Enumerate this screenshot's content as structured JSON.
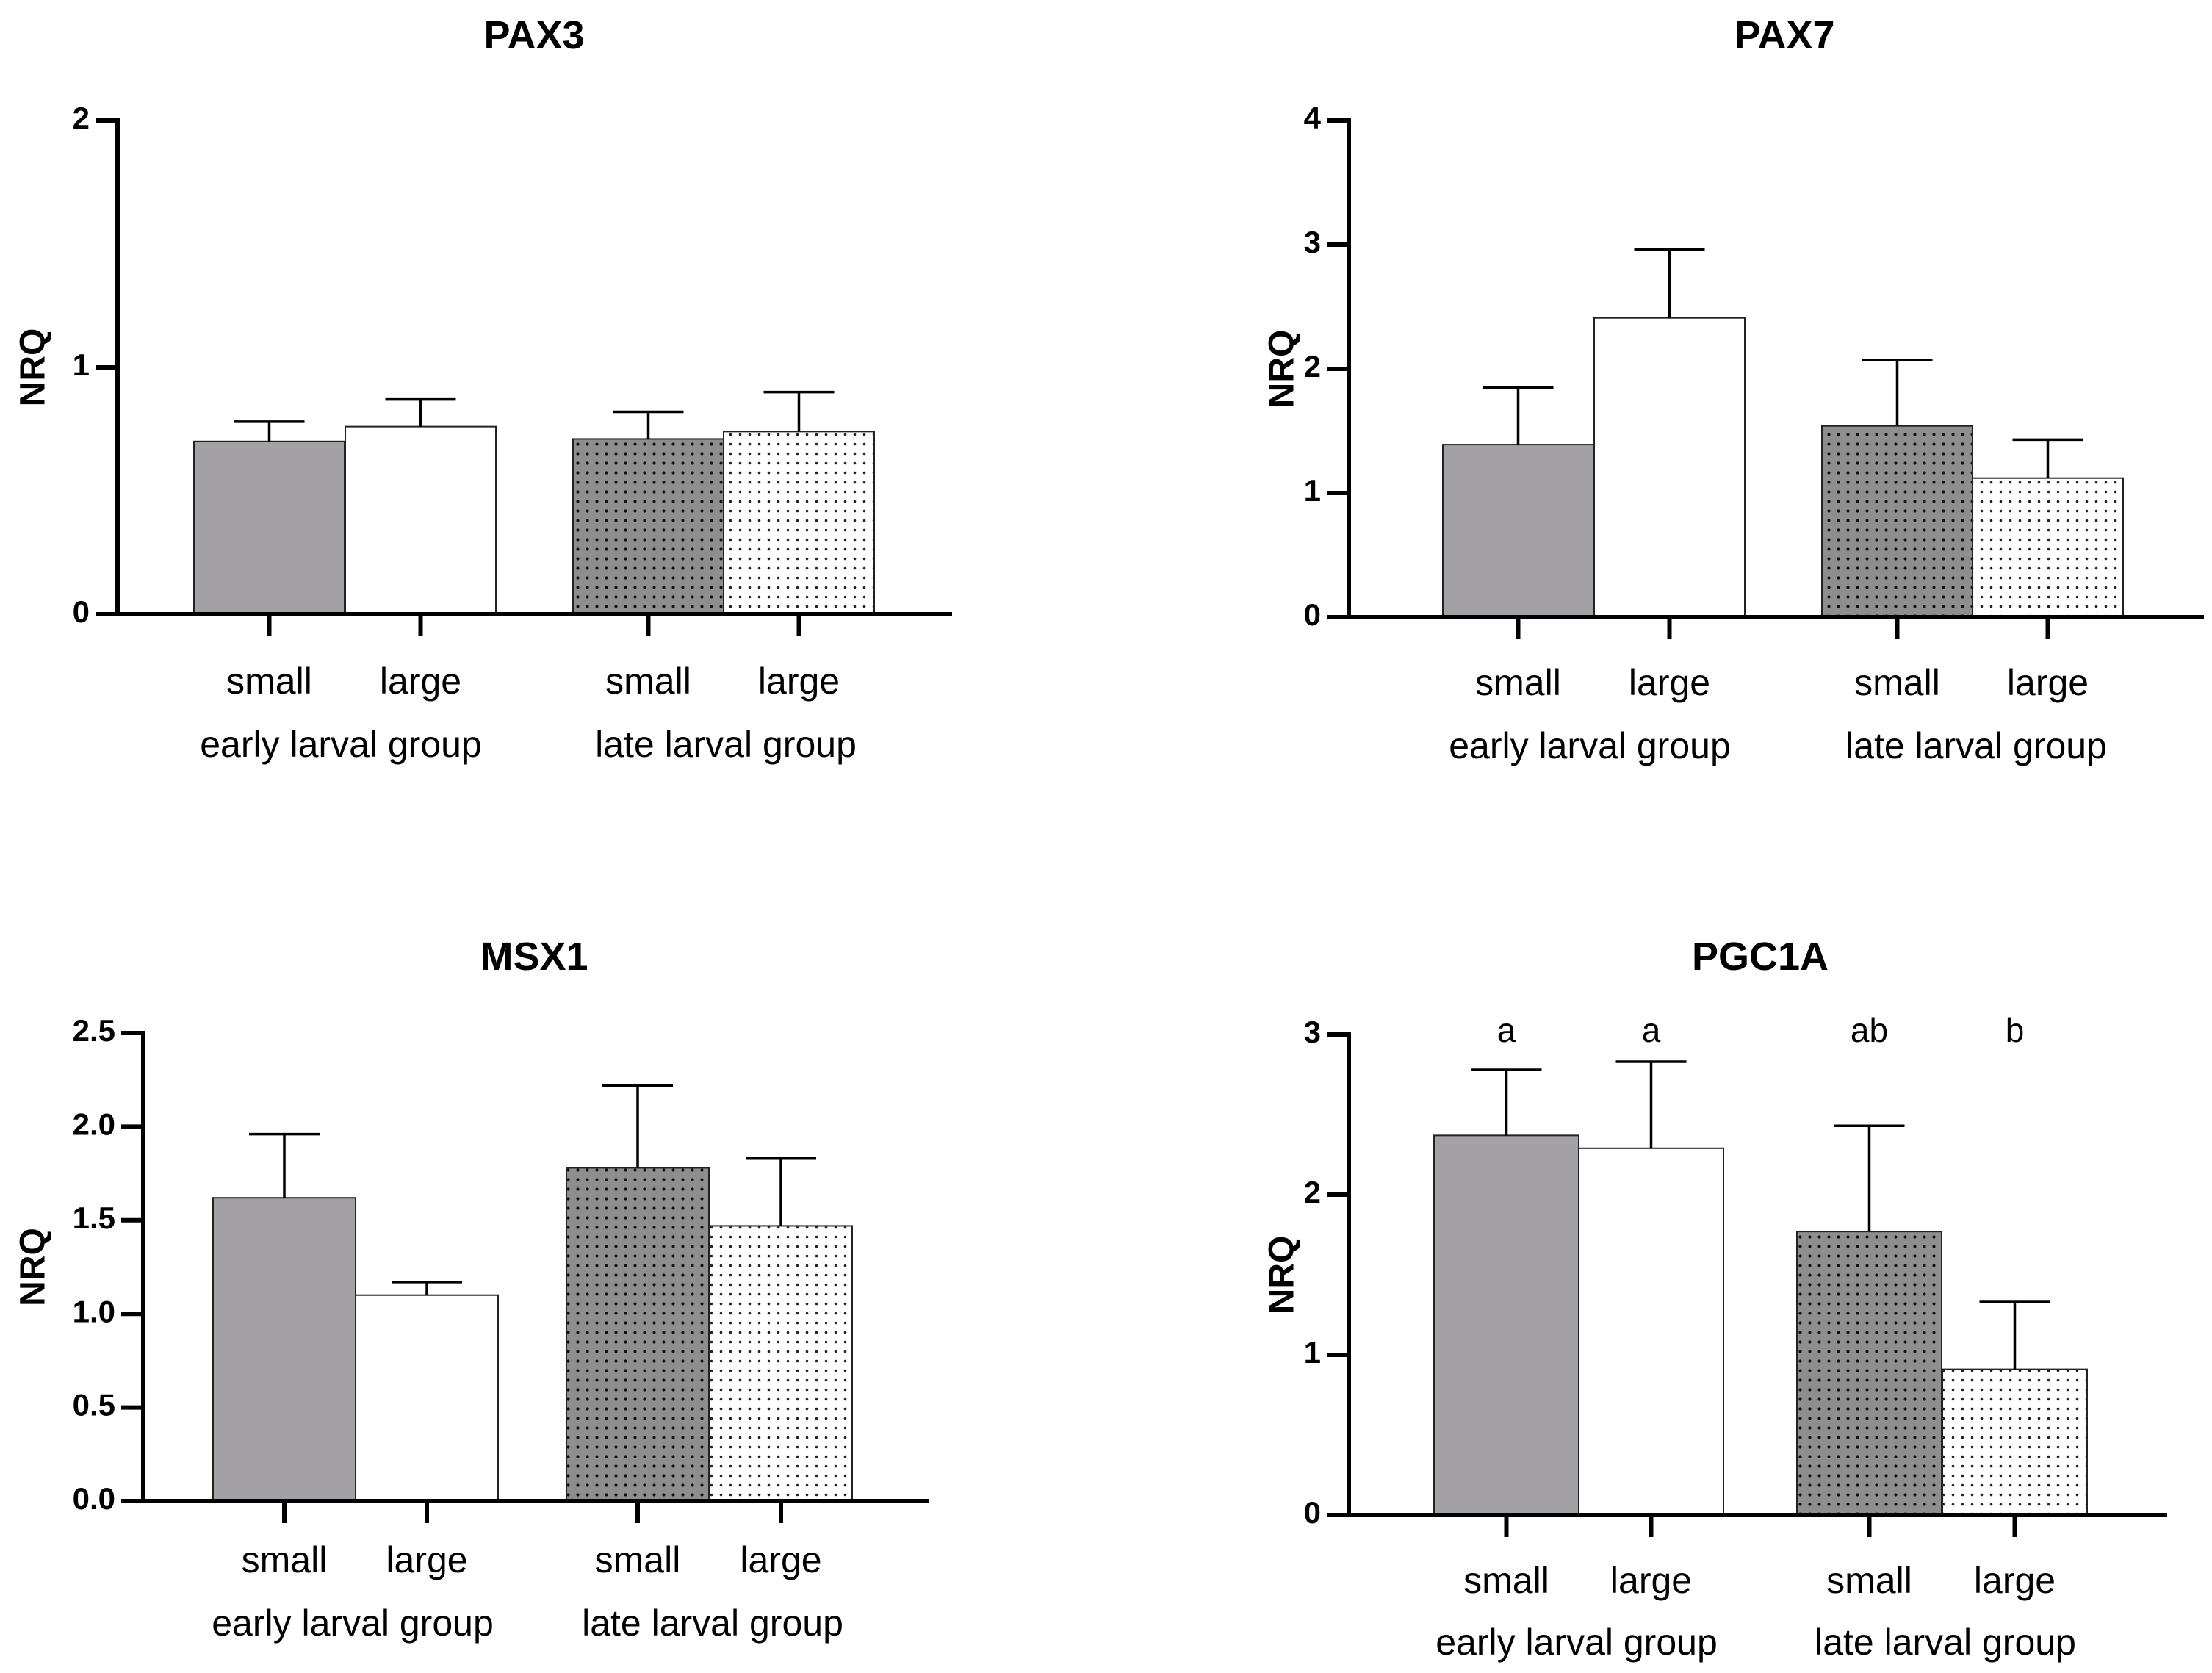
{
  "chart_data": [
    {
      "type": "bar",
      "title": "PAX3",
      "ylabel": "NRQ",
      "xlabel": "",
      "ylim": [
        0,
        2
      ],
      "yticks": [
        "0",
        "1",
        "2"
      ],
      "categories": [
        "small",
        "large",
        "small",
        "large"
      ],
      "groups": [
        "early larval group",
        "late larval group"
      ],
      "values": [
        0.7,
        0.76,
        0.71,
        0.74
      ],
      "errors": [
        0.08,
        0.11,
        0.11,
        0.16
      ],
      "fills": [
        "gray",
        "white",
        "dark-dots",
        "light-dots"
      ],
      "significance": []
    },
    {
      "type": "bar",
      "title": "PAX7",
      "ylabel": "NRQ",
      "xlabel": "",
      "ylim": [
        0,
        4
      ],
      "yticks": [
        "0",
        "1",
        "2",
        "3",
        "4"
      ],
      "categories": [
        "small",
        "large",
        "small",
        "large"
      ],
      "groups": [
        "early larval group",
        "late larval group"
      ],
      "values": [
        1.39,
        2.41,
        1.54,
        1.12
      ],
      "errors": [
        0.46,
        0.55,
        0.53,
        0.31
      ],
      "fills": [
        "gray",
        "white",
        "dark-dots",
        "light-dots"
      ],
      "significance": []
    },
    {
      "type": "bar",
      "title": "MSX1",
      "ylabel": "NRQ",
      "xlabel": "",
      "ylim": [
        0,
        2.5
      ],
      "yticks": [
        "0.0",
        "0.5",
        "1.0",
        "1.5",
        "2.0",
        "2.5"
      ],
      "categories": [
        "small",
        "large",
        "small",
        "large"
      ],
      "groups": [
        "early larval group",
        "late larval group"
      ],
      "values": [
        1.62,
        1.1,
        1.78,
        1.47
      ],
      "errors": [
        0.34,
        0.07,
        0.44,
        0.36
      ],
      "fills": [
        "gray",
        "white",
        "dark-dots",
        "light-dots"
      ],
      "significance": []
    },
    {
      "type": "bar",
      "title": "PGC1A",
      "ylabel": "NRQ",
      "xlabel": "",
      "ylim": [
        0,
        3
      ],
      "yticks": [
        "0",
        "1",
        "2",
        "3"
      ],
      "categories": [
        "small",
        "large",
        "small",
        "large"
      ],
      "groups": [
        "early larval group",
        "late larval group"
      ],
      "values": [
        2.37,
        2.29,
        1.77,
        0.91
      ],
      "errors": [
        0.41,
        0.54,
        0.66,
        0.42
      ],
      "fills": [
        "gray",
        "white",
        "dark-dots",
        "light-dots"
      ],
      "significance": [
        "a",
        "a",
        "ab",
        "b"
      ]
    }
  ]
}
